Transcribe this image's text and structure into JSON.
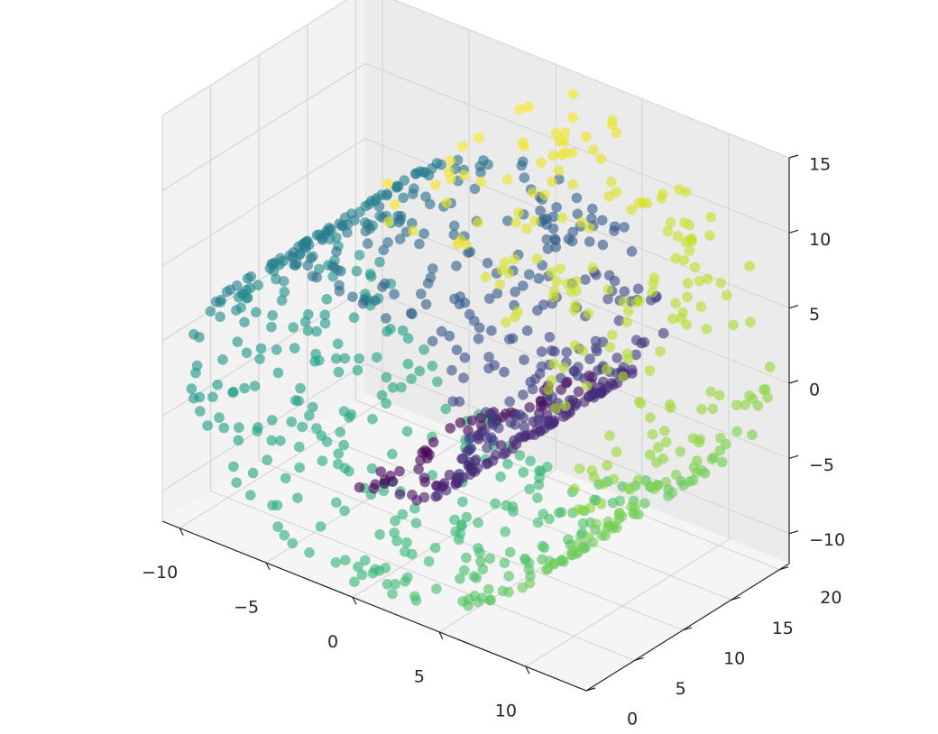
{
  "chart_data": {
    "type": "scatter",
    "subtype": "3d-scatter",
    "description_of_shape": "swiss-roll manifold",
    "title": "",
    "xlabel": "",
    "ylabel": "",
    "zlabel": "",
    "grid": true,
    "legend": "none",
    "colormap": "viridis",
    "color_range": [
      4.7,
      14.1
    ],
    "xlim": [
      -11,
      13.5
    ],
    "ylim": [
      0,
      21
    ],
    "zlim": [
      -12,
      15
    ],
    "x_ticks": [
      "−10",
      "−5",
      "0",
      "5",
      "10"
    ],
    "y_ticks": [
      "0",
      "5",
      "10",
      "15",
      "20"
    ],
    "z_ticks": [
      "−10",
      "−5",
      "0",
      "5",
      "10",
      "15"
    ],
    "x_tick_values": [
      -10,
      -5,
      0,
      5,
      10
    ],
    "y_tick_values": [
      0,
      5,
      10,
      15,
      20
    ],
    "z_tick_values": [
      -10,
      -5,
      0,
      5,
      10,
      15
    ],
    "point_count": 1000,
    "x_formula": "t*cos(t)",
    "z_formula": "t*sin(t)",
    "t_range": [
      4.71,
      14.14
    ],
    "y_range": [
      0,
      21
    ]
  }
}
